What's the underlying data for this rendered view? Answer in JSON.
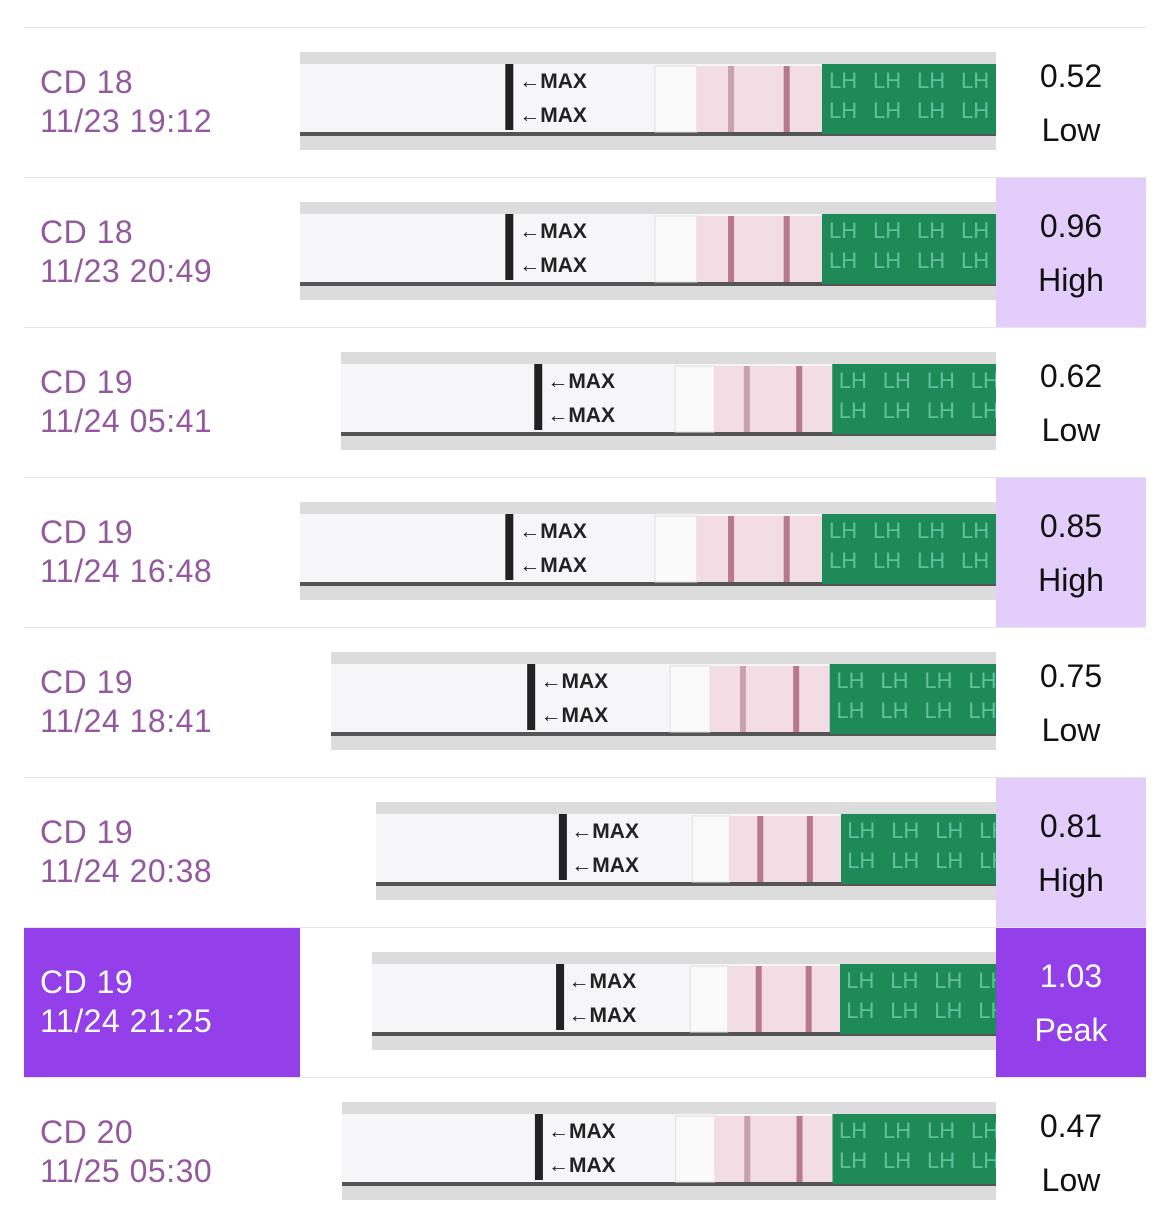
{
  "strip": {
    "max_label": "←MAX",
    "brand_label": "LH"
  },
  "rows": [
    {
      "cycle_day": "CD 18",
      "datetime": "11/23 19:12",
      "value": "0.52",
      "level": "Low"
    },
    {
      "cycle_day": "CD 18",
      "datetime": "11/23 20:49",
      "value": "0.96",
      "level": "High"
    },
    {
      "cycle_day": "CD 19",
      "datetime": "11/24 05:41",
      "value": "0.62",
      "level": "Low"
    },
    {
      "cycle_day": "CD 19",
      "datetime": "11/24 16:48",
      "value": "0.85",
      "level": "High"
    },
    {
      "cycle_day": "CD 19",
      "datetime": "11/24 18:41",
      "value": "0.75",
      "level": "Low"
    },
    {
      "cycle_day": "CD 19",
      "datetime": "11/24 20:38",
      "value": "0.81",
      "level": "High"
    },
    {
      "cycle_day": "CD 19",
      "datetime": "11/24 21:25",
      "value": "1.03",
      "level": "Peak"
    },
    {
      "cycle_day": "CD 20",
      "datetime": "11/25 05:30",
      "value": "0.47",
      "level": "Low"
    }
  ]
}
